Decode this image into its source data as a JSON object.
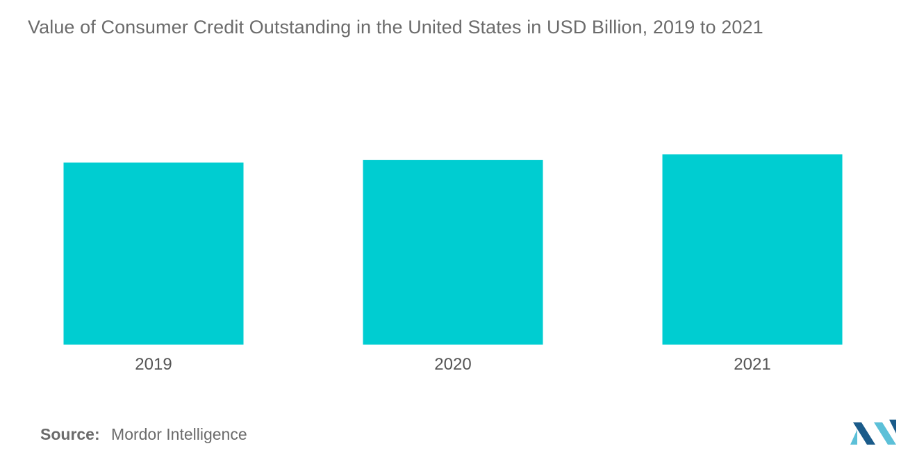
{
  "title": "Value of Consumer Credit Outstanding in the United States in USD Billion, 2019 to 2021",
  "source": {
    "label": "Source:",
    "text": "Mordor Intelligence"
  },
  "logo": {
    "icon": "mordor-intelligence-logo-icon",
    "colors": [
      "#5cc0d8",
      "#1a5b8a"
    ]
  },
  "chart_data": {
    "type": "bar",
    "categories": [
      "2019",
      "2020",
      "2021"
    ],
    "values": [
      4193,
      4255,
      4380
    ],
    "color": "#00cdd1",
    "ylim": [
      0,
      4800
    ],
    "grid": false,
    "legend": false
  }
}
